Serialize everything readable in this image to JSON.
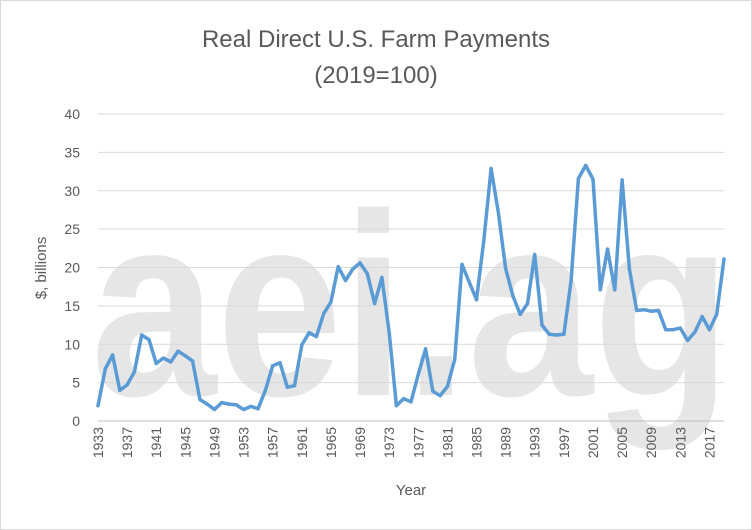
{
  "watermark": {
    "text": "aei.ag"
  },
  "chart_data": {
    "type": "line",
    "title": "Real Direct U.S. Farm Payments",
    "subtitle": "(2019=100)",
    "xlabel": "Year",
    "ylabel": "$, billions",
    "ylim": [
      0,
      40
    ],
    "yticks": [
      0,
      5,
      10,
      15,
      20,
      25,
      30,
      35,
      40
    ],
    "xticks": [
      1933,
      1937,
      1941,
      1945,
      1949,
      1953,
      1957,
      1961,
      1965,
      1969,
      1973,
      1977,
      1981,
      1985,
      1989,
      1993,
      1997,
      2001,
      2005,
      2009,
      2013,
      2017
    ],
    "grid": true,
    "line_color": "#5b9bd5",
    "series": [
      {
        "x": [
          1933,
          1934,
          1935,
          1936,
          1937,
          1938,
          1939,
          1940,
          1941,
          1942,
          1943,
          1944,
          1945,
          1946,
          1947,
          1948,
          1949,
          1950,
          1951,
          1952,
          1953,
          1954,
          1955,
          1956,
          1957,
          1958,
          1959,
          1960,
          1961,
          1962,
          1963,
          1964,
          1965,
          1966,
          1967,
          1968,
          1969,
          1970,
          1971,
          1972,
          1973,
          1974,
          1975,
          1976,
          1977,
          1978,
          1979,
          1980,
          1981,
          1982,
          1983,
          1984,
          1985,
          1986,
          1987,
          1988,
          1989,
          1990,
          1991,
          1992,
          1993,
          1994,
          1995,
          1996,
          1997,
          1998,
          1999,
          2000,
          2001,
          2002,
          2003,
          2004,
          2005,
          2006,
          2007,
          2008,
          2009,
          2010,
          2011,
          2012,
          2013,
          2014,
          2015,
          2016,
          2017,
          2018,
          2019
        ],
        "values": [
          2.0,
          6.8,
          8.6,
          4.0,
          4.7,
          6.4,
          11.2,
          10.6,
          7.5,
          8.2,
          7.7,
          9.1,
          8.5,
          7.8,
          2.8,
          2.2,
          1.5,
          2.4,
          2.2,
          2.1,
          1.5,
          1.9,
          1.6,
          4.0,
          7.2,
          7.6,
          4.4,
          4.6,
          9.9,
          11.5,
          11.0,
          14.0,
          15.5,
          20.1,
          18.3,
          19.8,
          20.6,
          19.2,
          15.3,
          18.7,
          11.5,
          2.0,
          2.9,
          2.5,
          6.1,
          9.4,
          3.9,
          3.3,
          4.5,
          8.0,
          20.4,
          18.1,
          15.8,
          23.5,
          32.9,
          27.2,
          19.9,
          16.3,
          13.9,
          15.3,
          21.7,
          12.5,
          11.3,
          11.2,
          11.3,
          18.3,
          31.6,
          33.3,
          31.5,
          17.1,
          22.4,
          17.1,
          31.4,
          19.8,
          14.4,
          14.5,
          14.3,
          14.4,
          11.9,
          11.9,
          12.1,
          10.5,
          11.6,
          13.6,
          11.9,
          13.9,
          21.1
        ]
      }
    ]
  }
}
